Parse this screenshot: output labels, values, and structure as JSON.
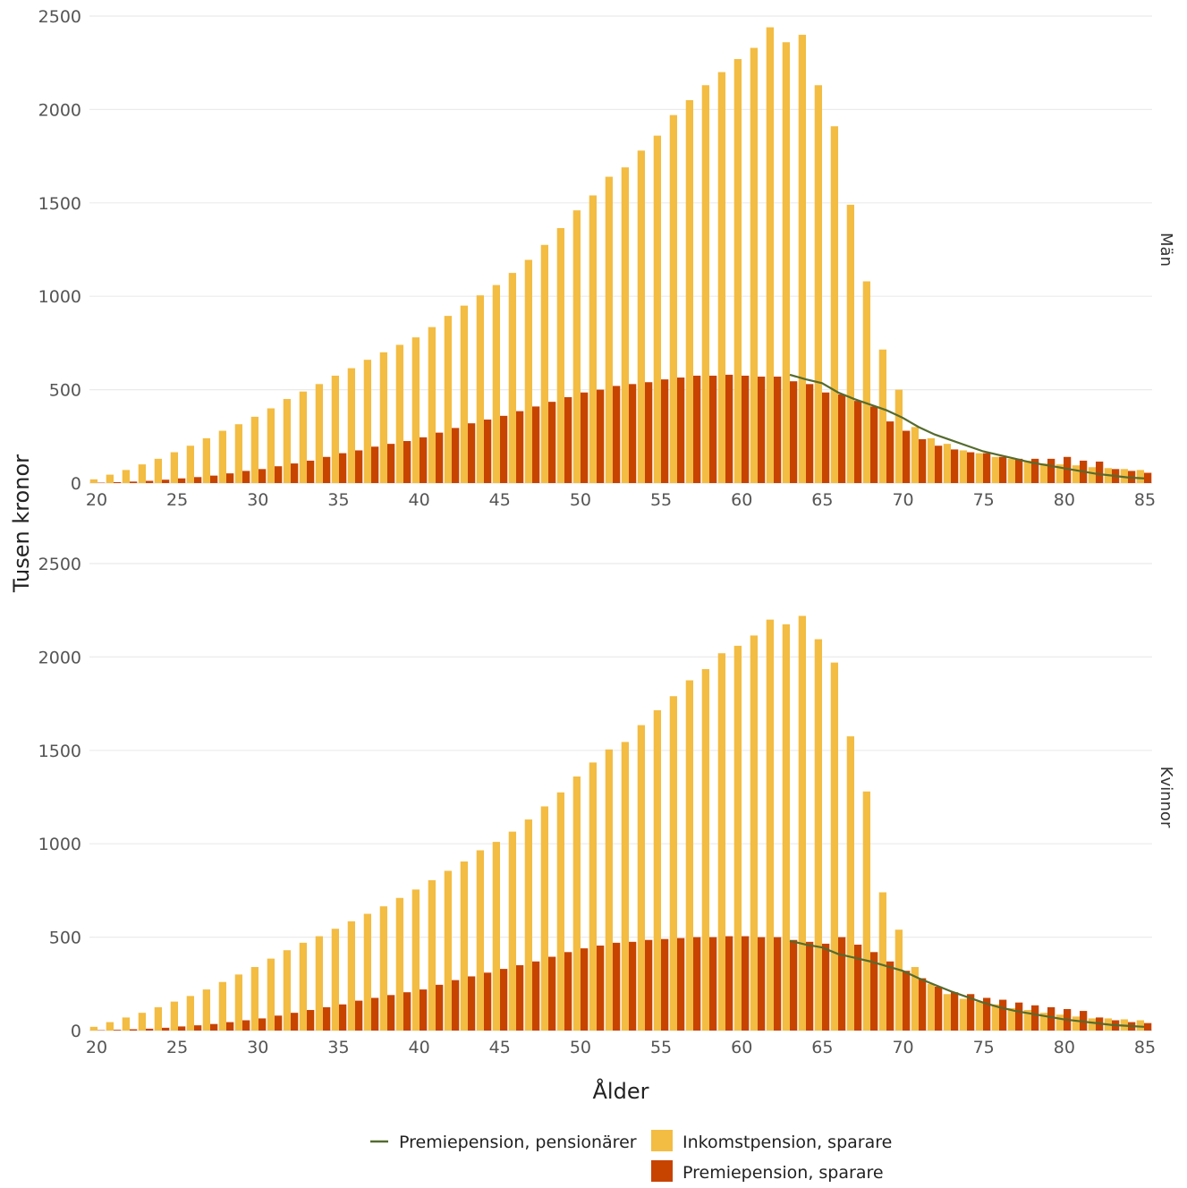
{
  "chart_data": {
    "type": "bar",
    "xlabel": "Ålder",
    "ylabel": "Tusen kronor",
    "x_ticks": [
      20,
      25,
      30,
      35,
      40,
      45,
      50,
      55,
      60,
      65,
      70,
      75,
      80,
      85
    ],
    "y_ticks": [
      0,
      500,
      1000,
      1500,
      2000,
      2500
    ],
    "xlim": [
      20,
      85
    ],
    "ylim": [
      0,
      2500
    ],
    "grid": true,
    "legend_position": "bottom",
    "colors": {
      "inkomst": "#F3BC42",
      "premie": "#C74300",
      "pension_line": "#556B2F",
      "grid": "#ebebeb"
    },
    "legend": {
      "line": "Premiepension, pensionärer",
      "inkomst": "Inkomstpension, sparare",
      "premie": "Premiepension, sparare"
    },
    "panels": [
      {
        "name": "Män",
        "ages": [
          20,
          21,
          22,
          23,
          24,
          25,
          26,
          27,
          28,
          29,
          30,
          31,
          32,
          33,
          34,
          35,
          36,
          37,
          38,
          39,
          40,
          41,
          42,
          43,
          44,
          45,
          46,
          47,
          48,
          49,
          50,
          51,
          52,
          53,
          54,
          55,
          56,
          57,
          58,
          59,
          60,
          61,
          62,
          63,
          64,
          65,
          66,
          67,
          68,
          69,
          70,
          71,
          72,
          73,
          74,
          75,
          76,
          77,
          78,
          79,
          80,
          81,
          82,
          83,
          84,
          85
        ],
        "inkomst": [
          20,
          45,
          70,
          100,
          130,
          165,
          200,
          240,
          280,
          315,
          355,
          400,
          450,
          490,
          530,
          575,
          615,
          660,
          700,
          740,
          780,
          835,
          895,
          950,
          1005,
          1060,
          1125,
          1195,
          1275,
          1365,
          1460,
          1540,
          1640,
          1690,
          1780,
          1860,
          1970,
          2050,
          2130,
          2200,
          2270,
          2330,
          2440,
          2360,
          2400,
          2130,
          1910,
          1490,
          1080,
          715,
          500,
          300,
          240,
          210,
          175,
          160,
          140,
          130,
          120,
          105,
          100,
          95,
          85,
          80,
          75,
          70
        ],
        "premie": [
          2,
          5,
          8,
          12,
          18,
          25,
          32,
          40,
          52,
          65,
          75,
          90,
          105,
          120,
          140,
          160,
          175,
          195,
          210,
          225,
          245,
          270,
          295,
          320,
          340,
          360,
          385,
          410,
          435,
          460,
          485,
          500,
          520,
          530,
          540,
          555,
          565,
          575,
          575,
          580,
          575,
          570,
          570,
          545,
          530,
          485,
          475,
          440,
          410,
          330,
          280,
          235,
          200,
          180,
          165,
          160,
          140,
          130,
          130,
          130,
          140,
          120,
          115,
          75,
          65,
          55
        ]
      },
      {
        "name": "Kvinnor",
        "ages": [
          20,
          21,
          22,
          23,
          24,
          25,
          26,
          27,
          28,
          29,
          30,
          31,
          32,
          33,
          34,
          35,
          36,
          37,
          38,
          39,
          40,
          41,
          42,
          43,
          44,
          45,
          46,
          47,
          48,
          49,
          50,
          51,
          52,
          53,
          54,
          55,
          56,
          57,
          58,
          59,
          60,
          61,
          62,
          63,
          64,
          65,
          66,
          67,
          68,
          69,
          70,
          71,
          72,
          73,
          74,
          75,
          76,
          77,
          78,
          79,
          80,
          81,
          82,
          83,
          84,
          85
        ],
        "inkomst": [
          20,
          45,
          70,
          95,
          125,
          155,
          185,
          220,
          260,
          300,
          340,
          385,
          430,
          470,
          505,
          545,
          585,
          625,
          665,
          710,
          755,
          805,
          855,
          905,
          965,
          1010,
          1065,
          1130,
          1200,
          1275,
          1360,
          1435,
          1505,
          1545,
          1635,
          1715,
          1790,
          1875,
          1935,
          2020,
          2060,
          2115,
          2200,
          2175,
          2220,
          2095,
          1970,
          1575,
          1280,
          740,
          540,
          340,
          250,
          195,
          170,
          155,
          140,
          120,
          110,
          95,
          85,
          75,
          65,
          65,
          60,
          55
        ],
        "premie": [
          2,
          4,
          7,
          10,
          15,
          22,
          28,
          35,
          45,
          55,
          65,
          80,
          95,
          110,
          125,
          140,
          160,
          175,
          190,
          205,
          220,
          245,
          270,
          290,
          310,
          330,
          350,
          370,
          395,
          420,
          440,
          455,
          470,
          475,
          485,
          490,
          495,
          500,
          500,
          505,
          505,
          500,
          500,
          485,
          475,
          465,
          500,
          460,
          420,
          370,
          320,
          280,
          235,
          205,
          195,
          175,
          165,
          150,
          135,
          125,
          115,
          105,
          70,
          55,
          45,
          40
        ]
      }
    ],
    "pensionarer_line": {
      "label": "Premiepension, pensionärer",
      "man": {
        "ages": [
          63,
          64,
          65,
          66,
          67,
          68,
          69,
          70,
          71,
          72,
          73,
          74,
          75,
          76,
          77,
          78,
          79,
          80,
          81,
          82,
          83,
          84,
          85
        ],
        "values": [
          580,
          555,
          535,
          485,
          450,
          420,
          390,
          350,
          300,
          260,
          230,
          200,
          170,
          150,
          130,
          110,
          95,
          80,
          65,
          50,
          40,
          30,
          25
        ]
      },
      "kvinnor": {
        "ages": [
          63,
          64,
          65,
          66,
          67,
          68,
          69,
          70,
          71,
          72,
          73,
          74,
          75,
          76,
          77,
          78,
          79,
          80,
          81,
          82,
          83,
          84,
          85
        ],
        "values": [
          480,
          460,
          445,
          410,
          390,
          370,
          345,
          320,
          280,
          245,
          210,
          180,
          150,
          125,
          105,
          90,
          75,
          60,
          50,
          40,
          30,
          25,
          20
        ]
      }
    }
  }
}
